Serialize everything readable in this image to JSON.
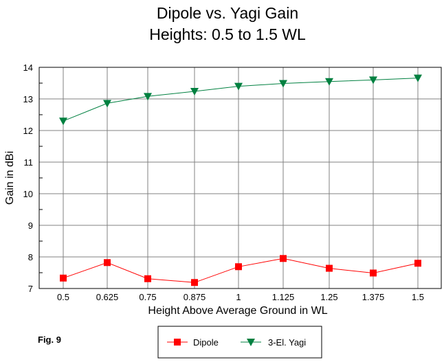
{
  "chart_data": {
    "type": "line",
    "title": "Dipole vs. Yagi Gain",
    "subtitle": "Heights:  0.5 to 1.5 WL",
    "xlabel": "Height Above Average Ground in WL",
    "ylabel": "Gain in dBi",
    "categories": [
      "0.5",
      "0.625",
      "0.75",
      "0.875",
      "1",
      "1.125",
      "1.25",
      "1.375",
      "1.5"
    ],
    "ylim": [
      7,
      14
    ],
    "yticks": [
      "7",
      "8",
      "9",
      "10",
      "11",
      "12",
      "13",
      "14"
    ],
    "grid": true,
    "legend": "bottom",
    "series": [
      {
        "name": "Dipole",
        "color": "#ff0000",
        "marker": "square",
        "values": [
          7.33,
          7.82,
          7.31,
          7.19,
          7.69,
          7.95,
          7.64,
          7.49,
          7.8
        ]
      },
      {
        "name": "3-El. Yagi",
        "color": "#008040",
        "marker": "triangle-down",
        "values": [
          12.3,
          12.86,
          13.08,
          13.24,
          13.4,
          13.49,
          13.55,
          13.6,
          13.66
        ]
      }
    ]
  },
  "figure_label": "Fig. 9"
}
